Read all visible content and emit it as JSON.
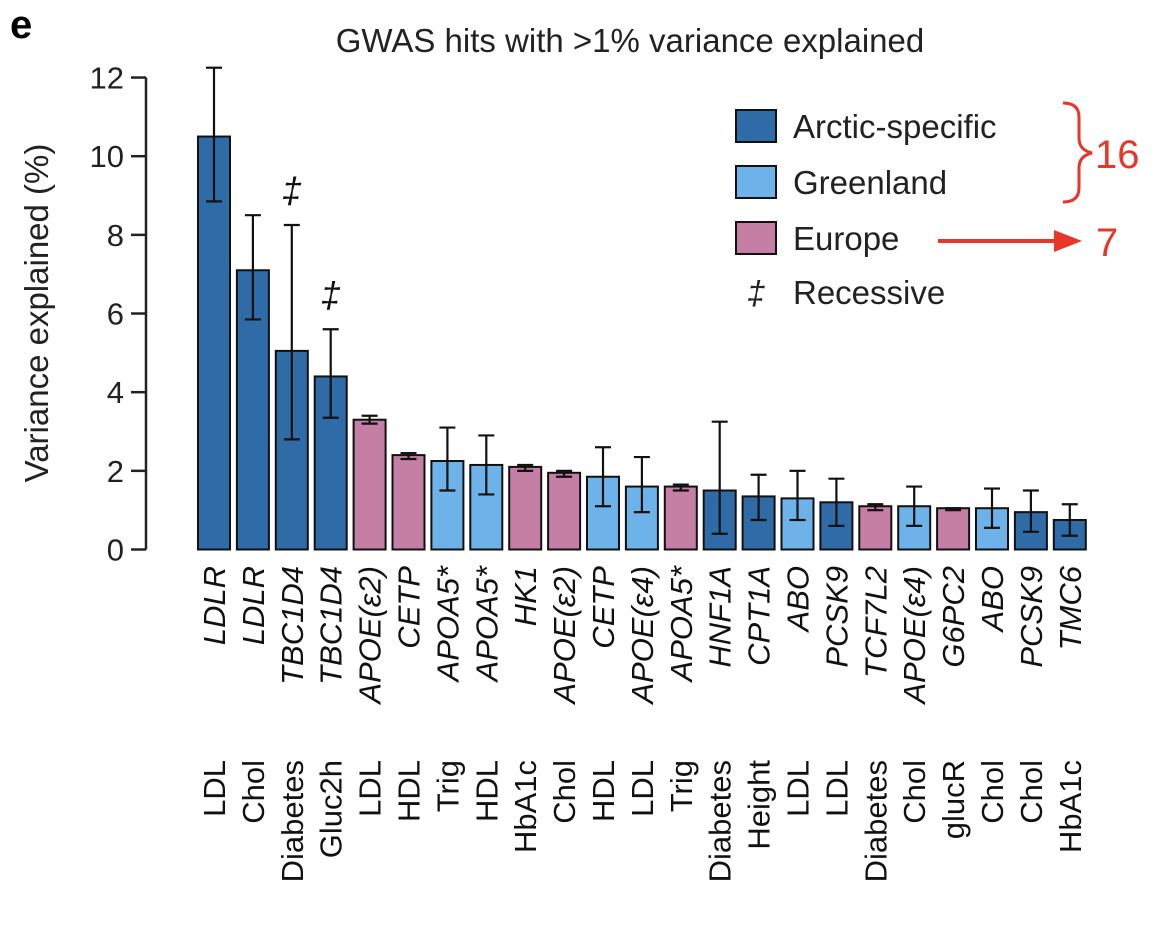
{
  "panel_letter": "e",
  "chart_data": {
    "type": "bar",
    "title": "GWAS hits with >1% variance explained",
    "ylabel": "Variance explained (%)",
    "xlabel": "",
    "ylim": [
      0,
      12
    ],
    "yticks": [
      0,
      2,
      4,
      6,
      8,
      10,
      12
    ],
    "grid": false,
    "legend_position": "top-right",
    "legend": [
      {
        "label": "Arctic-specific",
        "group": "arctic",
        "color": "#2f6ba6"
      },
      {
        "label": "Greenland",
        "group": "greenland",
        "color": "#6db2e8"
      },
      {
        "label": "Europe",
        "group": "europe",
        "color": "#c57ea4"
      },
      {
        "label": "Recessive",
        "symbol": "‡"
      }
    ],
    "recessive_symbol": "‡",
    "bars": [
      {
        "gene": "LDLR",
        "trait": "LDL",
        "value": 10.5,
        "err_low": 8.85,
        "err_high": 12.25,
        "group": "arctic",
        "recessive": false
      },
      {
        "gene": "LDLR",
        "trait": "Chol",
        "value": 7.1,
        "err_low": 5.85,
        "err_high": 8.5,
        "group": "arctic",
        "recessive": false
      },
      {
        "gene": "TBC1D4",
        "trait": "Diabetes",
        "value": 5.05,
        "err_low": 2.8,
        "err_high": 8.25,
        "group": "arctic",
        "recessive": true
      },
      {
        "gene": "TBC1D4",
        "trait": "Gluc2h",
        "value": 4.4,
        "err_low": 3.35,
        "err_high": 5.6,
        "group": "arctic",
        "recessive": true
      },
      {
        "gene": "APOE(ε2)",
        "trait": "LDL",
        "value": 3.3,
        "err_low": 3.2,
        "err_high": 3.4,
        "group": "europe",
        "recessive": false
      },
      {
        "gene": "CETP",
        "trait": "HDL",
        "value": 2.4,
        "err_low": 2.3,
        "err_high": 2.45,
        "group": "europe",
        "recessive": false
      },
      {
        "gene": "APOA5*",
        "trait": "Trig",
        "value": 2.25,
        "err_low": 1.5,
        "err_high": 3.1,
        "group": "greenland",
        "recessive": false
      },
      {
        "gene": "APOA5*",
        "trait": "HDL",
        "value": 2.15,
        "err_low": 1.4,
        "err_high": 2.9,
        "group": "greenland",
        "recessive": false
      },
      {
        "gene": "HK1",
        "trait": "HbA1c",
        "value": 2.1,
        "err_low": 2.0,
        "err_high": 2.15,
        "group": "europe",
        "recessive": false
      },
      {
        "gene": "APOE(ε2)",
        "trait": "Chol",
        "value": 1.95,
        "err_low": 1.85,
        "err_high": 2.0,
        "group": "europe",
        "recessive": false
      },
      {
        "gene": "CETP",
        "trait": "HDL",
        "value": 1.85,
        "err_low": 1.1,
        "err_high": 2.6,
        "group": "greenland",
        "recessive": false
      },
      {
        "gene": "APOE(ε4)",
        "trait": "LDL",
        "value": 1.6,
        "err_low": 0.95,
        "err_high": 2.35,
        "group": "greenland",
        "recessive": false
      },
      {
        "gene": "APOA5*",
        "trait": "Trig",
        "value": 1.6,
        "err_low": 1.5,
        "err_high": 1.65,
        "group": "europe",
        "recessive": false
      },
      {
        "gene": "HNF1A",
        "trait": "Diabetes",
        "value": 1.5,
        "err_low": 0.4,
        "err_high": 3.25,
        "group": "arctic",
        "recessive": false
      },
      {
        "gene": "CPT1A",
        "trait": "Height",
        "value": 1.35,
        "err_low": 0.75,
        "err_high": 1.9,
        "group": "arctic",
        "recessive": false
      },
      {
        "gene": "ABO",
        "trait": "LDL",
        "value": 1.3,
        "err_low": 0.75,
        "err_high": 2.0,
        "group": "greenland",
        "recessive": false
      },
      {
        "gene": "PCSK9",
        "trait": "LDL",
        "value": 1.2,
        "err_low": 0.6,
        "err_high": 1.8,
        "group": "arctic",
        "recessive": false
      },
      {
        "gene": "TCF7L2",
        "trait": "Diabetes",
        "value": 1.1,
        "err_low": 1.0,
        "err_high": 1.15,
        "group": "europe",
        "recessive": false
      },
      {
        "gene": "APOE(ε4)",
        "trait": "Chol",
        "value": 1.1,
        "err_low": 0.6,
        "err_high": 1.6,
        "group": "greenland",
        "recessive": false
      },
      {
        "gene": "G6PC2",
        "trait": "glucR",
        "value": 1.05,
        "err_low": 1.0,
        "err_high": 1.05,
        "group": "europe",
        "recessive": false
      },
      {
        "gene": "ABO",
        "trait": "Chol",
        "value": 1.05,
        "err_low": 0.55,
        "err_high": 1.55,
        "group": "greenland",
        "recessive": false
      },
      {
        "gene": "PCSK9",
        "trait": "Chol",
        "value": 0.95,
        "err_low": 0.45,
        "err_high": 1.5,
        "group": "arctic",
        "recessive": false
      },
      {
        "gene": "TMC6",
        "trait": "HbA1c",
        "value": 0.75,
        "err_low": 0.35,
        "err_high": 1.15,
        "group": "arctic",
        "recessive": false
      }
    ],
    "annotations": [
      {
        "text": "16",
        "type": "brace",
        "target": "Arctic-specific + Greenland",
        "color": "#e8362a"
      },
      {
        "text": "7",
        "type": "arrow",
        "target": "Europe",
        "color": "#e8362a"
      }
    ]
  }
}
